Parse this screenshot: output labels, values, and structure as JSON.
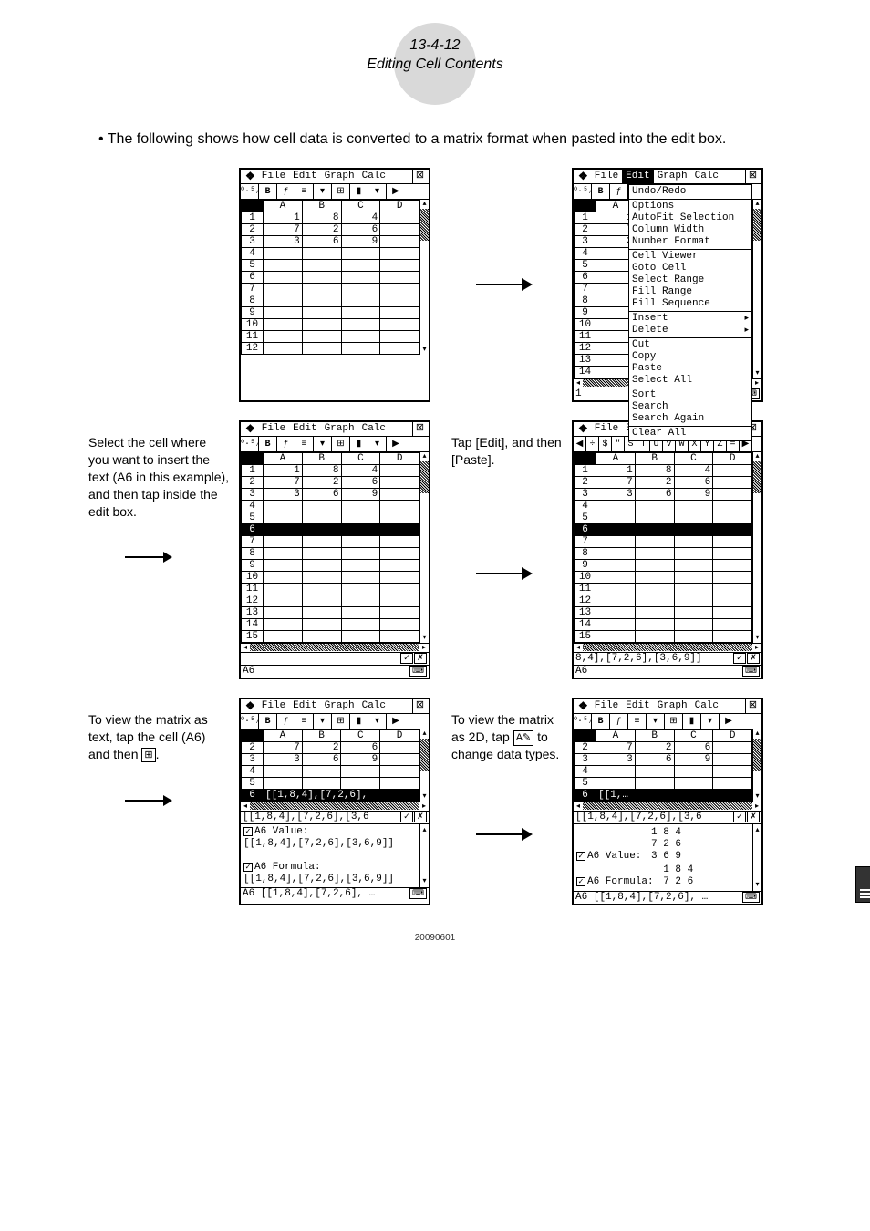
{
  "header": {
    "line1": "13-4-12",
    "line2": "Editing Cell Contents"
  },
  "intro": "The following shows how cell data is converted to a matrix format when pasted into the edit box.",
  "menus": [
    "File",
    "Edit",
    "Graph",
    "Calc"
  ],
  "editMenu": [
    [
      "Undo/Redo"
    ],
    [
      "Options",
      "AutoFit Selection",
      "Column Width",
      "Number Format"
    ],
    [
      "Cell Viewer",
      "Goto Cell",
      "Select Range",
      "Fill Range",
      "Fill Sequence"
    ],
    [
      "Insert",
      "Delete"
    ],
    [
      "Cut",
      "Copy",
      "Paste",
      "Select All"
    ],
    [
      "Sort",
      "Search",
      "Search Again"
    ],
    [
      "Clear All"
    ]
  ],
  "submenuItems": [
    "Insert",
    "Delete"
  ],
  "cols": [
    "A",
    "B",
    "C",
    "D"
  ],
  "rows12": [
    1,
    2,
    3,
    4,
    5,
    6,
    7,
    8,
    9,
    10,
    11,
    12
  ],
  "rows14": [
    1,
    2,
    3,
    4,
    5,
    6,
    7,
    8,
    9,
    10,
    11,
    12,
    13,
    14,
    15
  ],
  "row6start": [
    2,
    3,
    4,
    5,
    6
  ],
  "data": {
    "1": {
      "A": "1",
      "B": "8",
      "C": "4"
    },
    "2": {
      "A": "7",
      "B": "2",
      "C": "6"
    },
    "3": {
      "A": "3",
      "B": "6",
      "C": "9"
    }
  },
  "side1": "Select the cell where you want to insert the text (A6 in this example), and then tap inside the edit box.",
  "mid2": "Tap [Edit], and then [Paste].",
  "side3a": "To view the matrix as text, tap the cell (A6) and then ",
  "mid3a": "To view the matrix as 2D, tap ",
  "mid3b": " to change data types.",
  "editline2r": "8,4],[7,2,6],[3,6,9]]",
  "cellrefA6": "A6",
  "cellref1": "1",
  "row6matrix": "[[1,8,4],[7,2,6],",
  "row6short": "[[1,…",
  "editline3": "[[1,8,4],[7,2,6],[3,6",
  "valueLabel": "A6 Value:",
  "formulaLabel": "A6 Formula:",
  "matrixText": "[[1,8,4],[7,2,6],[3,6,9]]",
  "matrixRows": [
    "1 8 4",
    "7 2 6",
    "3 6 9"
  ],
  "matrixRows2": [
    "1 8 4",
    "7 2 6"
  ],
  "statusA6": "A6  [[1,8,4],[7,2,6], …",
  "kbdKeys": [
    "◀",
    "÷",
    "$",
    "\"",
    "S",
    "T",
    "U",
    "V",
    "W",
    "X",
    "Y",
    "Z",
    "=",
    "▶"
  ],
  "iconA": "A✎",
  "iconGrid": "⊞",
  "footer": "20090601"
}
